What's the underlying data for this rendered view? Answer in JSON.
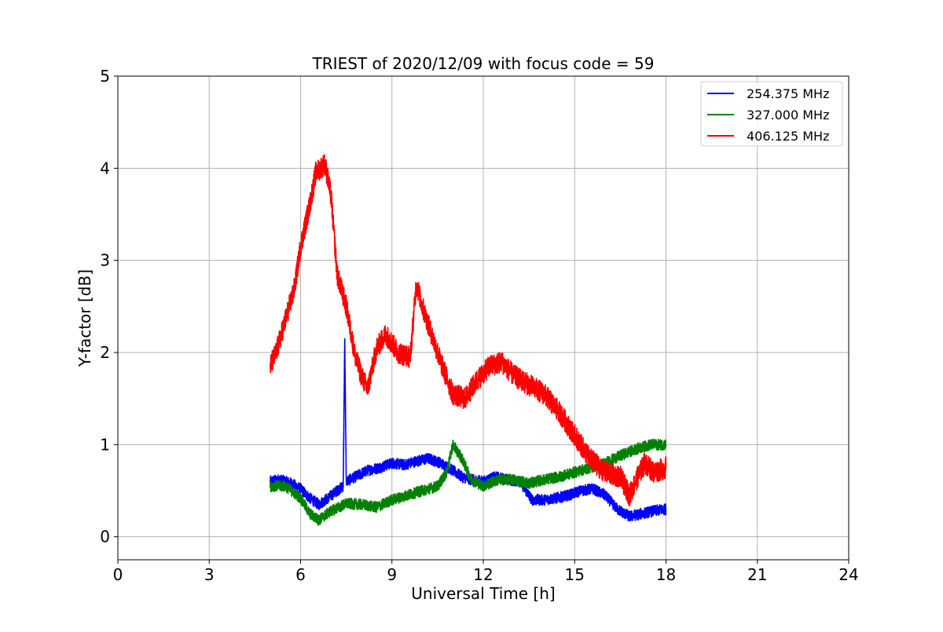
{
  "chart_data": {
    "type": "line",
    "title": "TRIEST of 2020/12/09 with focus code = 59",
    "xlabel": "Universal Time [h]",
    "ylabel": "Y-factor [dB]",
    "xlim": [
      0,
      24
    ],
    "ylim": [
      -0.25,
      5.0
    ],
    "xticks": [
      0,
      3,
      6,
      9,
      12,
      15,
      18,
      21,
      24
    ],
    "yticks": [
      0,
      1,
      2,
      3,
      4,
      5
    ],
    "grid": true,
    "legend_position": "top-right",
    "series": [
      {
        "name": "254.375 MHz",
        "color": "#0000ff",
        "noise": 0.06,
        "x": [
          5.0,
          5.3,
          5.7,
          6.0,
          6.3,
          6.6,
          6.9,
          7.2,
          7.4,
          7.45,
          7.5,
          7.8,
          8.2,
          8.6,
          9.0,
          9.4,
          9.8,
          10.2,
          10.6,
          11.0,
          11.3,
          11.6,
          12.0,
          12.4,
          12.8,
          13.2,
          13.6,
          14.0,
          14.4,
          14.8,
          15.2,
          15.6,
          16.0,
          16.4,
          16.8,
          17.2,
          17.6,
          18.0
        ],
        "y": [
          0.6,
          0.62,
          0.58,
          0.52,
          0.42,
          0.35,
          0.42,
          0.5,
          0.55,
          2.15,
          0.6,
          0.65,
          0.72,
          0.75,
          0.8,
          0.78,
          0.82,
          0.85,
          0.8,
          0.72,
          0.65,
          0.62,
          0.6,
          0.65,
          0.62,
          0.6,
          0.4,
          0.4,
          0.42,
          0.45,
          0.5,
          0.52,
          0.45,
          0.3,
          0.22,
          0.25,
          0.28,
          0.3
        ]
      },
      {
        "name": "327.000 MHz",
        "color": "#008000",
        "noise": 0.06,
        "x": [
          5.0,
          5.5,
          6.0,
          6.3,
          6.6,
          7.0,
          7.5,
          8.0,
          8.5,
          9.0,
          9.5,
          10.0,
          10.5,
          10.8,
          11.0,
          11.3,
          11.6,
          12.0,
          12.5,
          13.0,
          13.5,
          14.0,
          14.5,
          15.0,
          15.5,
          16.0,
          16.5,
          17.0,
          17.5,
          18.0
        ],
        "y": [
          0.55,
          0.55,
          0.42,
          0.25,
          0.18,
          0.28,
          0.36,
          0.35,
          0.32,
          0.4,
          0.45,
          0.5,
          0.55,
          0.7,
          1.0,
          0.85,
          0.62,
          0.55,
          0.62,
          0.62,
          0.58,
          0.62,
          0.65,
          0.7,
          0.75,
          0.8,
          0.88,
          0.95,
          1.0,
          1.0
        ]
      },
      {
        "name": "406.125 MHz",
        "color": "#ff0000",
        "noise": 0.12,
        "x": [
          5.0,
          5.2,
          5.5,
          5.8,
          6.0,
          6.3,
          6.5,
          6.8,
          7.0,
          7.2,
          7.5,
          7.8,
          8.0,
          8.2,
          8.5,
          8.8,
          9.2,
          9.6,
          9.8,
          10.0,
          10.3,
          10.6,
          11.0,
          11.4,
          11.8,
          12.2,
          12.6,
          13.0,
          13.5,
          14.0,
          14.5,
          15.0,
          15.5,
          16.0,
          16.5,
          16.8,
          17.0,
          17.3,
          17.6,
          18.0
        ],
        "y": [
          1.85,
          2.0,
          2.35,
          2.7,
          3.15,
          3.6,
          3.95,
          4.05,
          3.7,
          2.85,
          2.5,
          1.95,
          1.75,
          1.6,
          2.05,
          2.2,
          2.0,
          1.95,
          2.75,
          2.5,
          2.2,
          1.9,
          1.55,
          1.5,
          1.7,
          1.85,
          1.9,
          1.75,
          1.65,
          1.55,
          1.35,
          1.1,
          0.85,
          0.7,
          0.65,
          0.45,
          0.6,
          0.8,
          0.7,
          0.75
        ]
      }
    ]
  }
}
